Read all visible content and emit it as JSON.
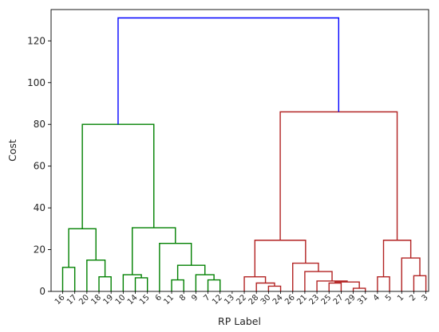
{
  "chart_data": {
    "type": "dendrogram",
    "title": "",
    "xlabel": "RP Label",
    "ylabel": "Cost",
    "ylim": [
      0,
      135
    ],
    "yticks": [
      0,
      20,
      40,
      60,
      80,
      100,
      120
    ],
    "grid": false,
    "leaves": [
      "16",
      "17",
      "20",
      "18",
      "19",
      "10",
      "14",
      "15",
      "6",
      "11",
      "8",
      "9",
      "7",
      "12",
      "13",
      "22",
      "28",
      "30",
      "24",
      "26",
      "21",
      "23",
      "25",
      "27",
      "29",
      "31",
      "4",
      "5",
      "1",
      "2",
      "3"
    ],
    "colors": {
      "cluster_a": "#008000",
      "cluster_b": "#b22222",
      "root": "#0000ff",
      "axis": "#000000"
    },
    "links": [
      {
        "left": 0,
        "right": 1,
        "height": 11.5,
        "color": "cluster_a"
      },
      {
        "left": 3,
        "right": 4,
        "height": 7.0,
        "color": "cluster_a"
      },
      {
        "left": 2,
        "right": "L1",
        "height": 15.0,
        "color": "cluster_a"
      },
      {
        "left": "L0",
        "right": "L2",
        "height": 30.0,
        "color": "cluster_a"
      },
      {
        "left": 6,
        "right": 7,
        "height": 6.5,
        "color": "cluster_a"
      },
      {
        "left": 5,
        "right": "L4",
        "height": 8.0,
        "color": "cluster_a"
      },
      {
        "left": 9,
        "right": 10,
        "height": 5.5,
        "color": "cluster_a"
      },
      {
        "left": 12,
        "right": 13,
        "height": 5.5,
        "color": "cluster_a"
      },
      {
        "left": 11,
        "right": "L7",
        "height": 8.0,
        "color": "cluster_a"
      },
      {
        "left": "L6",
        "right": "L8",
        "height": 12.5,
        "color": "cluster_a"
      },
      {
        "left": 8,
        "right": "L9",
        "height": 23.0,
        "color": "cluster_a"
      },
      {
        "left": "L5",
        "right": "L10",
        "height": 30.5,
        "color": "cluster_a"
      },
      {
        "left": "L3",
        "right": "L11",
        "height": 80.0,
        "color": "cluster_a"
      },
      {
        "left": 17,
        "right": 18,
        "height": 2.5,
        "color": "cluster_b"
      },
      {
        "left": 16,
        "right": "L13",
        "height": 4.0,
        "color": "cluster_b"
      },
      {
        "left": 15,
        "right": "L14",
        "height": 7.0,
        "color": "cluster_b"
      },
      {
        "left": 22,
        "right": 23,
        "height": 4.0,
        "color": "cluster_b"
      },
      {
        "left": 24,
        "right": 25,
        "height": 1.5,
        "color": "cluster_b"
      },
      {
        "left": "L16",
        "right": "L17",
        "height": 4.5,
        "color": "cluster_b"
      },
      {
        "left": 21,
        "right": "L18",
        "height": 5.0,
        "color": "cluster_b"
      },
      {
        "left": 20,
        "right": "L19",
        "height": 9.5,
        "color": "cluster_b"
      },
      {
        "left": 19,
        "right": "L20",
        "height": 13.5,
        "color": "cluster_b"
      },
      {
        "left": "L15",
        "right": "L21",
        "height": 24.5,
        "color": "cluster_b"
      },
      {
        "left": 26,
        "right": 27,
        "height": 7.0,
        "color": "cluster_b"
      },
      {
        "left": 29,
        "right": 30,
        "height": 7.5,
        "color": "cluster_b"
      },
      {
        "left": 28,
        "right": "L24",
        "height": 16.0,
        "color": "cluster_b"
      },
      {
        "left": "L23",
        "right": "L25",
        "height": 24.5,
        "color": "cluster_b"
      },
      {
        "left": "L22",
        "right": "L26",
        "height": 86.0,
        "color": "cluster_b"
      },
      {
        "left": "L12",
        "right": "L27",
        "height": 131.0,
        "color": "root"
      }
    ]
  }
}
